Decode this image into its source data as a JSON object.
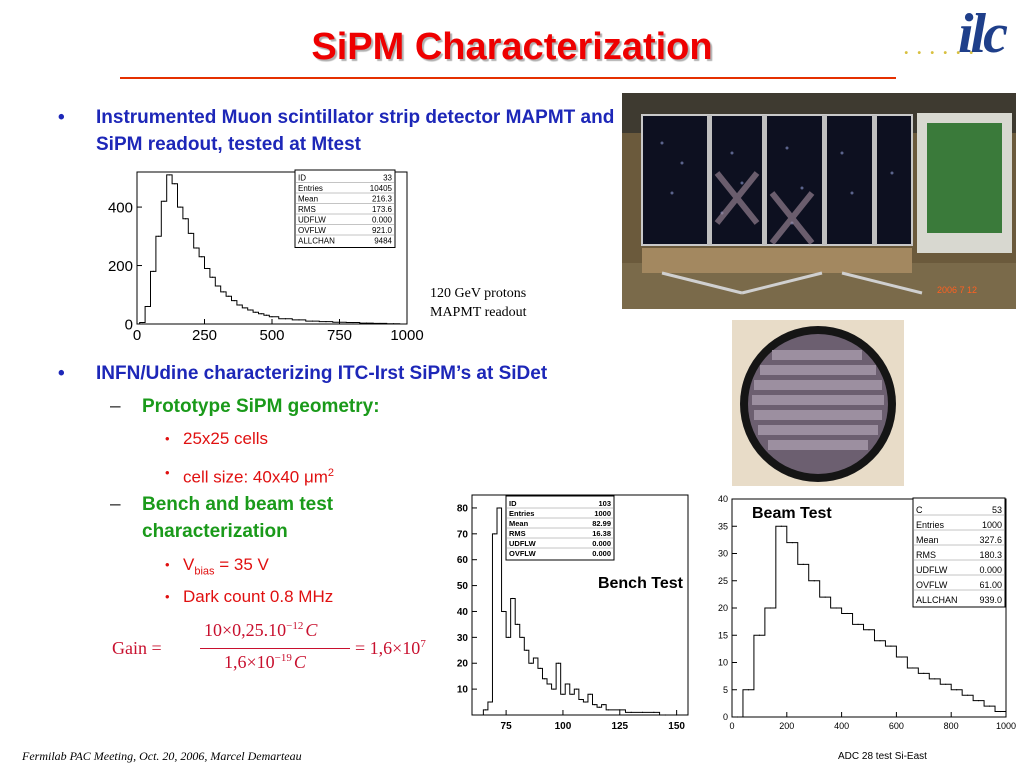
{
  "slide": {
    "title": "SiPM Characterization",
    "footer": "Fermilab PAC Meeting, Oct. 20, 2006, Marcel Demarteau",
    "footer_right": "ADC 28 test Si-East"
  },
  "logo": {
    "dots": ". . . . . .",
    "text": "ilc"
  },
  "bullets": {
    "b1_marker": "•",
    "b1_text": "Instrumented Muon scintillator strip detector MAPMT and SiPM readout, tested at Mtest",
    "b2_marker": "•",
    "b2_text": "INFN/Udine characterizing ITC-Irst SiPM’s at SiDet",
    "dash_marker": "–",
    "d1_text": "Prototype SiPM geometry:",
    "d1_sub1": "25x25 cells",
    "d1_sub2_prefix": "cell size: 40x40 ",
    "d1_sub2_mu": "μ",
    "d1_sub2_unit": "m",
    "d1_sub2_sup": "2",
    "d2_text": "Bench and beam test characterization",
    "d2_sub1_prefix": "V",
    "d2_sub1_sub": "bias",
    "d2_sub1_suffix": " = 35 V",
    "d2_sub2": "Dark count 0.8 MHz",
    "sub_marker": "•"
  },
  "annotation": {
    "line1": "120 GeV protons",
    "line2": "MAPMT readout"
  },
  "equation": {
    "lhs": "Gain =",
    "numerator": "10×0,25.10",
    "num_exp": "−12",
    "num_unit": "C",
    "denominator": "1,6×10",
    "den_exp": "−19",
    "den_unit": "C",
    "rhs": "= 1,6×10",
    "rhs_exp": "7"
  },
  "chart_data": [
    {
      "type": "histogram",
      "xlim": [
        0,
        1000
      ],
      "ylim": [
        0,
        520
      ],
      "x_ticks": [
        "0",
        "250",
        "500",
        "750",
        "1000"
      ],
      "y_ticks": [
        "0",
        "200",
        "400"
      ],
      "stats": [
        [
          "ID",
          "33"
        ],
        [
          "Entries",
          "10405"
        ],
        [
          "Mean",
          "216.3"
        ],
        [
          "RMS",
          "173.6"
        ],
        [
          "UDFLW",
          "0.000"
        ],
        [
          "OVFLW",
          "921.0"
        ],
        [
          "ALLCHAN",
          "9484"
        ]
      ],
      "x": [
        20,
        40,
        60,
        80,
        100,
        120,
        140,
        160,
        180,
        200,
        220,
        240,
        260,
        280,
        300,
        320,
        340,
        360,
        380,
        400,
        420,
        440,
        460,
        480,
        500,
        550,
        600,
        650,
        700,
        750,
        800,
        850,
        900,
        950
      ],
      "values": [
        5,
        60,
        180,
        300,
        420,
        510,
        480,
        400,
        360,
        310,
        260,
        230,
        190,
        160,
        130,
        110,
        95,
        80,
        65,
        55,
        48,
        40,
        35,
        30,
        25,
        18,
        14,
        10,
        8,
        6,
        5,
        3,
        2,
        1
      ]
    },
    {
      "type": "histogram",
      "title": "Bench Test",
      "xlim": [
        60,
        155
      ],
      "ylim": [
        0,
        85
      ],
      "x_ticks": [
        "75",
        "100",
        "125",
        "150"
      ],
      "y_ticks": [
        "10",
        "20",
        "30",
        "40",
        "50",
        "60",
        "70",
        "80"
      ],
      "stats": [
        [
          "ID",
          "103"
        ],
        [
          "Entries",
          "1000"
        ],
        [
          "Mean",
          "82.99"
        ],
        [
          "RMS",
          "16.38"
        ],
        [
          "UDFLW",
          "0.000"
        ],
        [
          "OVFLW",
          "0.000"
        ]
      ],
      "x": [
        66,
        68,
        70,
        72,
        74,
        76,
        78,
        80,
        82,
        84,
        86,
        88,
        90,
        92,
        94,
        96,
        98,
        100,
        102,
        104,
        106,
        108,
        110,
        112,
        114,
        116,
        118,
        120,
        125,
        130,
        135,
        140,
        145,
        150
      ],
      "values": [
        2,
        5,
        70,
        80,
        40,
        30,
        45,
        35,
        30,
        25,
        20,
        22,
        18,
        14,
        12,
        10,
        20,
        8,
        12,
        8,
        10,
        6,
        5,
        8,
        4,
        3,
        4,
        2,
        2,
        1,
        1,
        1,
        0,
        0
      ]
    },
    {
      "type": "histogram",
      "title": "Beam Test",
      "xlim": [
        0,
        1000
      ],
      "ylim": [
        0,
        40
      ],
      "x_ticks": [
        "0",
        "200",
        "400",
        "600",
        "800",
        "1000"
      ],
      "y_ticks": [
        "0",
        "5",
        "10",
        "15",
        "20",
        "25",
        "30",
        "35",
        "40"
      ],
      "stats": [
        [
          "C",
          "53"
        ],
        [
          "Entries",
          "1000"
        ],
        [
          "Mean",
          "327.6"
        ],
        [
          "RMS",
          "180.3"
        ],
        [
          "UDFLW",
          "0.000"
        ],
        [
          "OVFLW",
          "61.00"
        ],
        [
          "ALLCHAN",
          "939.0"
        ]
      ],
      "x": [
        20,
        60,
        100,
        140,
        180,
        220,
        260,
        300,
        340,
        380,
        420,
        460,
        500,
        540,
        580,
        620,
        660,
        700,
        740,
        780,
        820,
        860,
        900,
        940,
        980
      ],
      "values": [
        0,
        5,
        15,
        20,
        35,
        32,
        28,
        25,
        22,
        20,
        19,
        17,
        16,
        14,
        13,
        11,
        9,
        8,
        7,
        6,
        5,
        4,
        3,
        2,
        1
      ]
    }
  ]
}
